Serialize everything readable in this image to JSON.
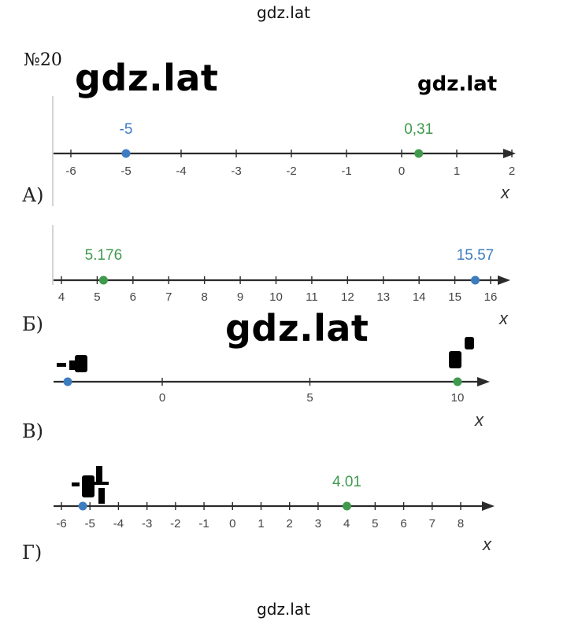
{
  "watermarks": {
    "top": "gdz.lat",
    "bottom": "gdz.lat",
    "big1": "gdz.lat",
    "big2": "gdz.lat",
    "right": "gdz.lat"
  },
  "task_number": "№20",
  "parts": [
    {
      "label": "А)",
      "axis_var": "x",
      "tick_labels": [
        "-6",
        "-5",
        "-4",
        "-3",
        "-2",
        "-1",
        "0",
        "1",
        "2"
      ],
      "ticks": [
        -6,
        -5,
        -4,
        -3,
        -2,
        -1,
        0,
        1,
        2
      ],
      "range": [
        -6.3,
        2.0
      ],
      "points": [
        {
          "value": -5,
          "label": "-5",
          "color": "#3e7cc0"
        },
        {
          "value": 0.31,
          "label": "0,31",
          "color": "#3f9a4d"
        }
      ]
    },
    {
      "label": "Б)",
      "axis_var": "x",
      "tick_labels": [
        "4",
        "5",
        "6",
        "7",
        "8",
        "9",
        "10",
        "11",
        "12",
        "13",
        "14",
        "15",
        "16"
      ],
      "ticks": [
        4,
        5,
        6,
        7,
        8,
        9,
        10,
        11,
        12,
        13,
        14,
        15,
        16
      ],
      "range": [
        3.85,
        16.45
      ],
      "points": [
        {
          "value": 5.176,
          "label": "5.176",
          "color": "#3f9a4d"
        },
        {
          "value": 15.57,
          "label": "15.57",
          "color": "#3e7cc0"
        }
      ]
    },
    {
      "label": "В)",
      "axis_var": "x",
      "tick_labels": [
        "0",
        "5",
        "10"
      ],
      "ticks": [
        0,
        5,
        10
      ],
      "range": [
        -3.7,
        11.3
      ],
      "points": [
        {
          "value": -3.2,
          "label": "",
          "color": "#3e7cc0"
        },
        {
          "value": 10,
          "label": "",
          "color": "#3f9a4d"
        }
      ]
    },
    {
      "label": "Г)",
      "axis_var": "x",
      "tick_labels": [
        "-6",
        "-5",
        "-4",
        "-3",
        "-2",
        "-1",
        "0",
        "1",
        "2",
        "3",
        "4",
        "5",
        "6",
        "7",
        "8"
      ],
      "ticks": [
        -6,
        -5,
        -4,
        -3,
        -2,
        -1,
        0,
        1,
        2,
        3,
        4,
        5,
        6,
        7,
        8
      ],
      "range": [
        -6.45,
        8.2
      ],
      "points": [
        {
          "value": -5.25,
          "label": "",
          "color": "#3e7cc0"
        },
        {
          "value": 4.01,
          "label": "4.01",
          "color": "#3f9a4d"
        }
      ]
    }
  ]
}
